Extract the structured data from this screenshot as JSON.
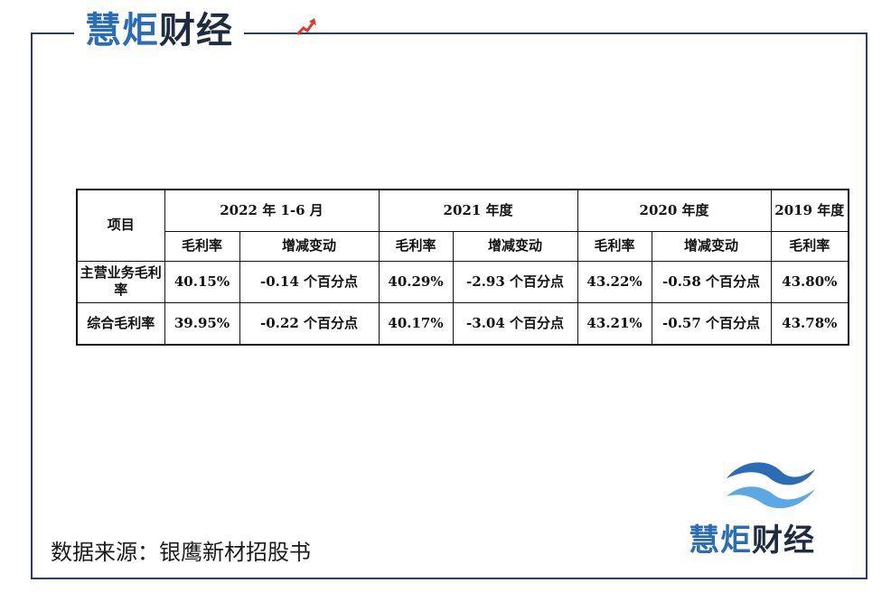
{
  "brand": {
    "part1": "慧炬",
    "part2": "财",
    "part3": "经"
  },
  "table": {
    "header_item": "项目",
    "periods": [
      "2022 年 1-6 月",
      "2021 年度",
      "2020 年度",
      "2019 年度"
    ],
    "sub_headers": {
      "gross_margin": "毛利率",
      "change": "增减变动"
    },
    "rows": [
      {
        "label": "主营业务毛利率",
        "cells": [
          "40.15%",
          "-0.14 个百分点",
          "40.29%",
          "-2.93 个百分点",
          "43.22%",
          "-0.58 个百分点",
          "43.80%"
        ]
      },
      {
        "label": "综合毛利率",
        "cells": [
          "39.95%",
          "-0.22 个百分点",
          "40.17%",
          "-3.04 个百分点",
          "43.21%",
          "-0.57 个百分点",
          "43.78%"
        ]
      }
    ]
  },
  "source": "数据来源：银鹰新材招股书",
  "colors": {
    "frame": "#2b3f66",
    "brand_blue": "#2a6cb5",
    "brand_dark": "#1f2c3f",
    "trend_red": "#e0392b"
  },
  "icons": {
    "top_logo": "trend-arrow-icon",
    "bottom_logo": "wave-logo-icon"
  }
}
